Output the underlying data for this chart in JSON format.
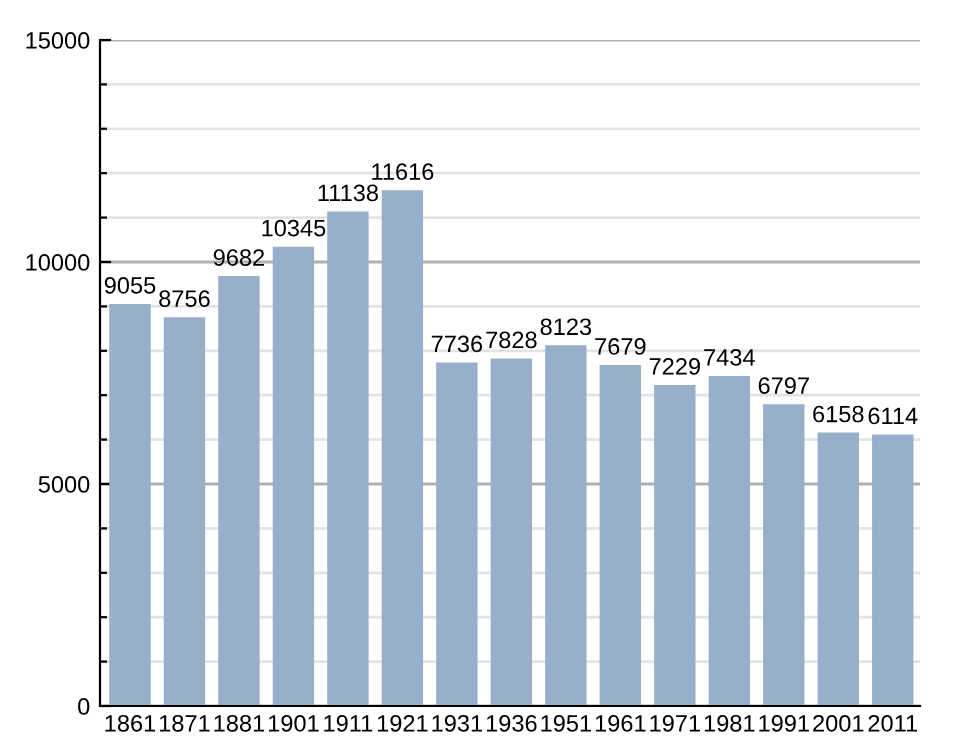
{
  "chart_data": {
    "type": "bar",
    "categories": [
      "1861",
      "1871",
      "1881",
      "1901",
      "1911",
      "1921",
      "1931",
      "1936",
      "1951",
      "1961",
      "1971",
      "1981",
      "1991",
      "2001",
      "2011"
    ],
    "values": [
      9055,
      8756,
      9682,
      10345,
      11138,
      11616,
      7736,
      7828,
      8123,
      7679,
      7229,
      7434,
      6797,
      6158,
      6114
    ],
    "color": "#97afcb",
    "ylim": [
      0,
      15000
    ],
    "yticks": [
      0,
      {
        "value": 1000,
        "label": null
      },
      {
        "value": 2000,
        "label": null
      },
      {
        "value": 3000,
        "label": null
      },
      {
        "value": 4000,
        "label": null
      },
      5000,
      {
        "value": 6000,
        "label": null
      },
      {
        "value": 7000,
        "label": null
      },
      {
        "value": 8000,
        "label": null
      },
      {
        "value": 9000,
        "label": null
      },
      10000,
      {
        "value": 11000,
        "label": null
      },
      {
        "value": 12000,
        "label": null
      },
      {
        "value": 13000,
        "label": null
      },
      {
        "value": 14000,
        "label": null
      },
      15000
    ],
    "grid": "y",
    "data_labels": true
  }
}
